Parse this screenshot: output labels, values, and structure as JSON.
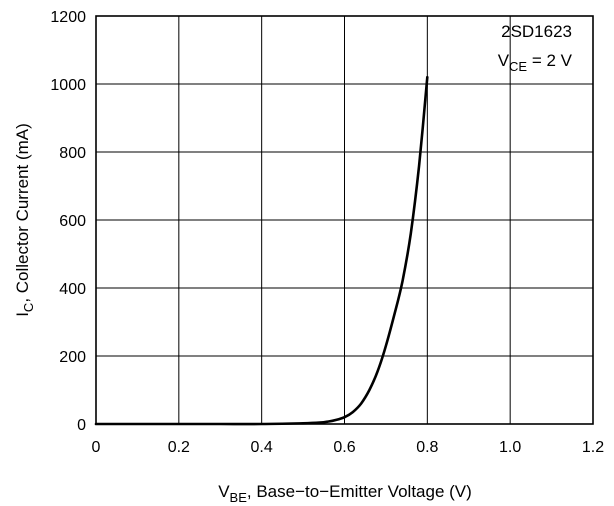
{
  "chart_data": {
    "type": "line",
    "xlabel_main": "V",
    "xlabel_sub": "BE",
    "xlabel_rest": ", Base−to−Emitter Voltage (V)",
    "ylabel_main": "I",
    "ylabel_sub": "C",
    "ylabel_rest": ", Collector Current (mA)",
    "xlim": [
      0,
      1.2
    ],
    "ylim": [
      0,
      1200
    ],
    "xticks": [
      "0",
      "0.2",
      "0.4",
      "0.6",
      "0.8",
      "1.0",
      "1.2"
    ],
    "yticks": [
      "0",
      "200",
      "400",
      "600",
      "800",
      "1000",
      "1200"
    ],
    "grid": true,
    "annotation": {
      "line1": "2SD1623",
      "line2_main": "V",
      "line2_sub": "CE",
      "line2_rest": " = 2 V"
    },
    "series": [
      {
        "x": [
          0.0,
          0.1,
          0.2,
          0.3,
          0.4,
          0.5,
          0.54,
          0.56,
          0.58,
          0.6,
          0.62,
          0.64,
          0.66,
          0.68,
          0.7,
          0.72,
          0.74,
          0.76,
          0.78,
          0.8
        ],
        "y": [
          0,
          0,
          0,
          0,
          0,
          2,
          4,
          7,
          12,
          20,
          35,
          60,
          100,
          155,
          230,
          320,
          420,
          560,
          760,
          1020
        ]
      }
    ]
  }
}
